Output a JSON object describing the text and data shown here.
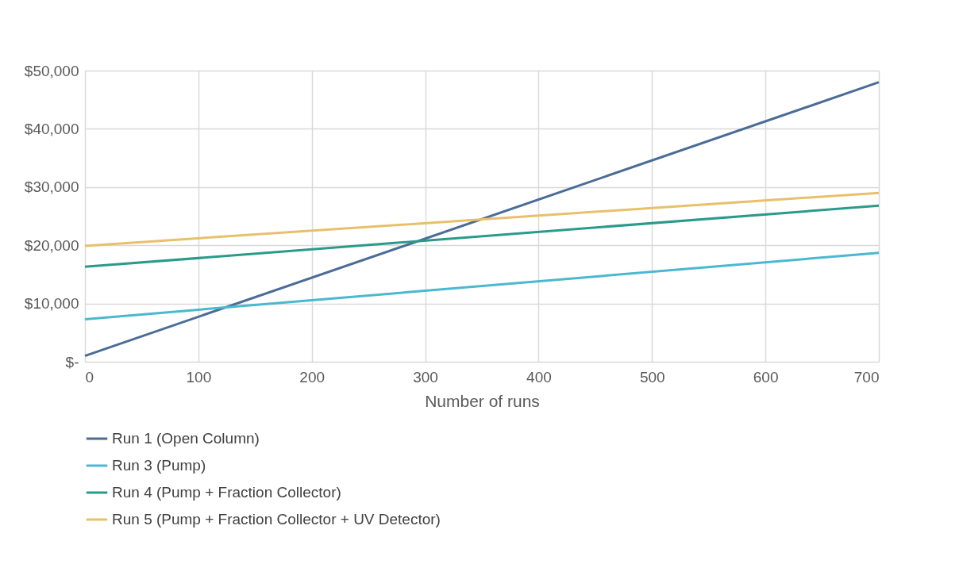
{
  "chart_data": {
    "type": "line",
    "xlabel": "Number of runs",
    "xlim": [
      0,
      700
    ],
    "xticks": [
      0,
      100,
      200,
      300,
      400,
      500,
      600,
      700
    ],
    "ylim": [
      0,
      50000
    ],
    "yticks": [
      {
        "value": 0,
        "label": "$-"
      },
      {
        "value": 10000,
        "label": "$10,000"
      },
      {
        "value": 20000,
        "label": "$20,000"
      },
      {
        "value": 30000,
        "label": "$30,000"
      },
      {
        "value": 40000,
        "label": "$40,000"
      },
      {
        "value": 50000,
        "label": "$50,000"
      }
    ],
    "x": [
      0,
      700
    ],
    "series": [
      {
        "name": "Run 1 (Open Column)",
        "color": "#4a6c96",
        "values": [
          1000,
          48000
        ]
      },
      {
        "name": "Run 3 (Pump)",
        "color": "#4ab8d0",
        "values": [
          7300,
          18700
        ]
      },
      {
        "name": "Run 4 (Pump + Fraction Collector)",
        "color": "#2a9a8a",
        "values": [
          16300,
          26800
        ]
      },
      {
        "name": "Run 5 (Pump + Fraction Collector + UV Detector)",
        "color": "#e8c06c",
        "values": [
          19900,
          29000
        ]
      }
    ],
    "grid": true,
    "legend": "bottom",
    "marker": "none",
    "line_style": "solid"
  }
}
